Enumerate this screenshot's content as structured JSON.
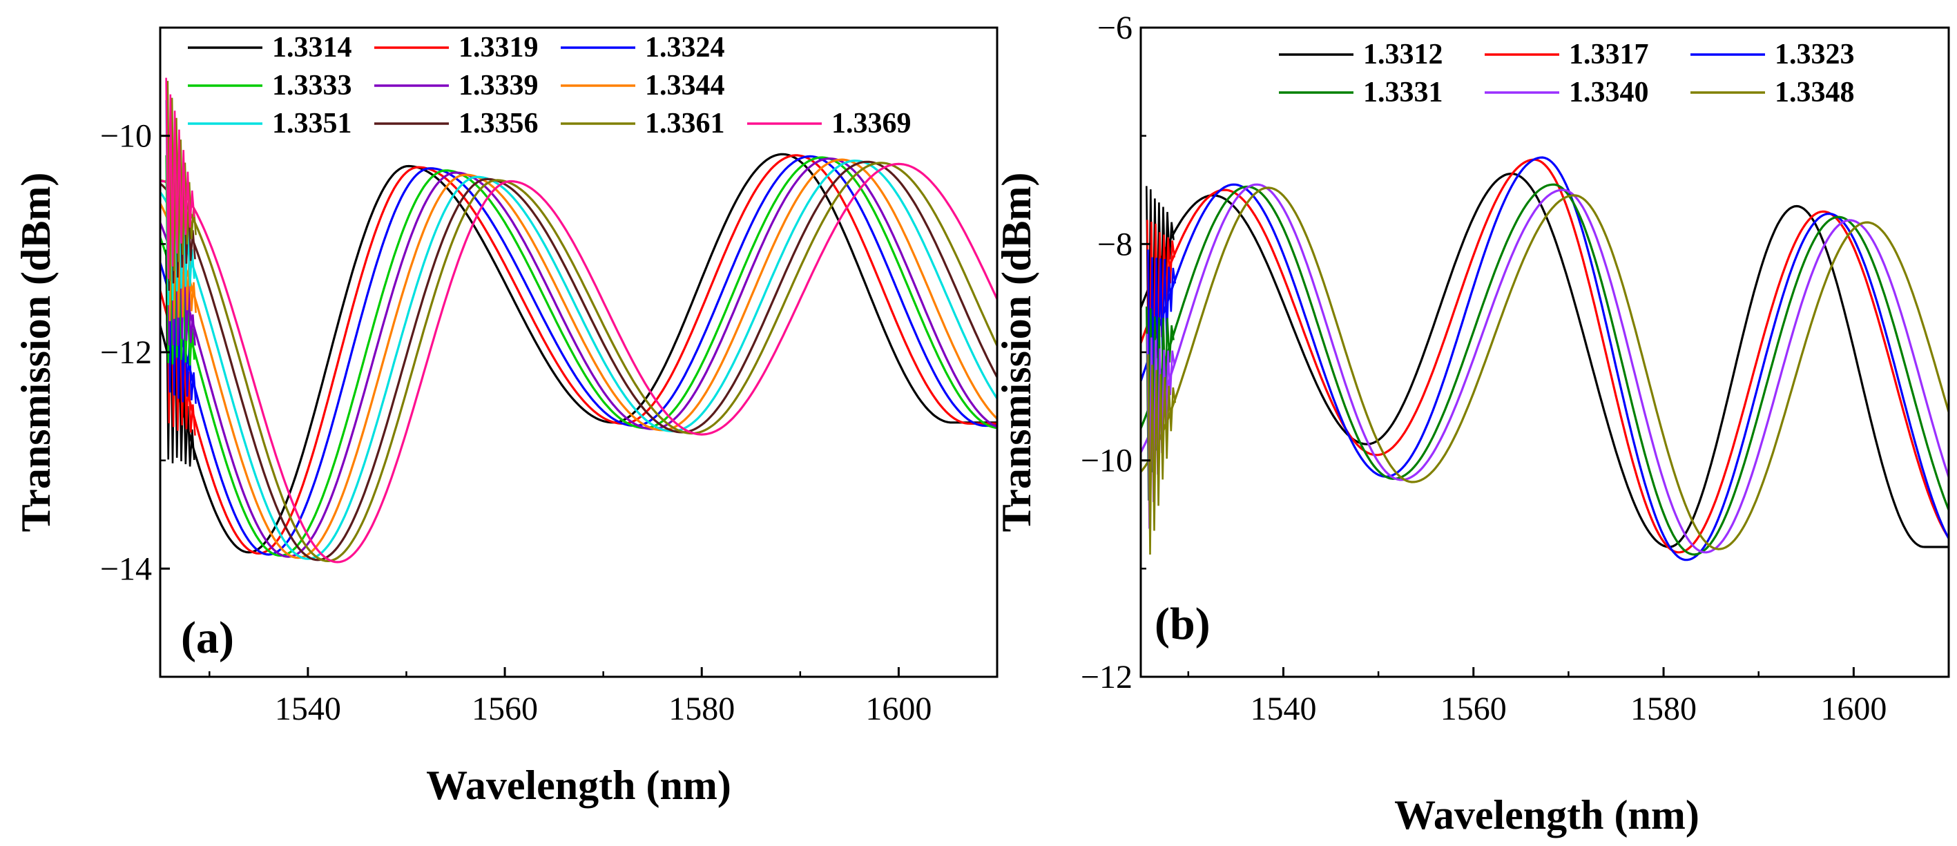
{
  "chart_data": [
    {
      "type": "line",
      "panel_label": "(a)",
      "xlabel": "Wavelength (nm)",
      "ylabel": "Transmission (dBm)",
      "xlim": [
        1525,
        1610
      ],
      "ylim": [
        -15,
        -9
      ],
      "xticks": [
        1540,
        1560,
        1580,
        1600
      ],
      "xtick_labels": [
        "1540",
        "1560",
        "1580",
        "1600"
      ],
      "yticks": [
        -14,
        -12,
        -10
      ],
      "ytick_labels": [
        "−14",
        "−12",
        "−10"
      ],
      "legend_position": "top",
      "legend_columns": 3,
      "series": [
        {
          "name": "1.3314",
          "color": "#000000",
          "peaks": [
            1550.2,
            1588.2
          ],
          "troughs": [
            1534.0,
            1571.0
          ],
          "peak_levels": [
            -10.28,
            -10.17
          ],
          "trough_levels": [
            -13.85,
            -12.65
          ]
        },
        {
          "name": "1.3319",
          "color": "#ff0000",
          "peaks": [
            1551.2,
            1589.6
          ],
          "troughs": [
            1535.0,
            1572.0
          ],
          "peak_levels": [
            -10.29,
            -10.18
          ],
          "trough_levels": [
            -13.86,
            -12.66
          ]
        },
        {
          "name": "1.3324",
          "color": "#0000ff",
          "peaks": [
            1552.4,
            1591.0
          ],
          "troughs": [
            1536.0,
            1573.2
          ],
          "peak_levels": [
            -10.3,
            -10.19
          ],
          "trough_levels": [
            -13.87,
            -12.68
          ]
        },
        {
          "name": "1.3333",
          "color": "#00cc00",
          "peaks": [
            1554.0,
            1592.2
          ],
          "troughs": [
            1537.2,
            1574.2
          ],
          "peak_levels": [
            -10.32,
            -10.2
          ],
          "trough_levels": [
            -13.88,
            -12.7
          ]
        },
        {
          "name": "1.3339",
          "color": "#8000c0",
          "peaks": [
            1555.0,
            1593.0
          ],
          "troughs": [
            1538.0,
            1575.0
          ],
          "peak_levels": [
            -10.34,
            -10.21
          ],
          "trough_levels": [
            -13.89,
            -12.71
          ]
        },
        {
          "name": "1.3344",
          "color": "#ff8000",
          "peaks": [
            1556.0,
            1594.2
          ],
          "troughs": [
            1539.0,
            1576.0
          ],
          "peak_levels": [
            -10.36,
            -10.22
          ],
          "trough_levels": [
            -13.9,
            -12.72
          ]
        },
        {
          "name": "1.3351",
          "color": "#00e0e0",
          "peaks": [
            1557.2,
            1595.6
          ],
          "troughs": [
            1540.0,
            1577.0
          ],
          "peak_levels": [
            -10.38,
            -10.23
          ],
          "trough_levels": [
            -13.91,
            -12.73
          ]
        },
        {
          "name": "1.3356",
          "color": "#5a1c1c",
          "peaks": [
            1558.2,
            1596.8
          ],
          "troughs": [
            1541.0,
            1578.0
          ],
          "peak_levels": [
            -10.4,
            -10.24
          ],
          "trough_levels": [
            -13.92,
            -12.74
          ]
        },
        {
          "name": "1.3361",
          "color": "#808000",
          "peaks": [
            1559.2,
            1598.2
          ],
          "troughs": [
            1542.0,
            1579.0
          ],
          "peak_levels": [
            -10.41,
            -10.25
          ],
          "trough_levels": [
            -13.93,
            -12.75
          ]
        },
        {
          "name": "1.3369",
          "color": "#ff1090",
          "peaks": [
            1560.6,
            1600.0
          ],
          "troughs": [
            1543.0,
            1580.0
          ],
          "peak_levels": [
            -10.42,
            -10.26
          ],
          "trough_levels": [
            -13.94,
            -12.76
          ]
        }
      ]
    },
    {
      "type": "line",
      "panel_label": "(b)",
      "xlabel": "Wavelength (nm)",
      "ylabel": "Transmission (dBm)",
      "xlim": [
        1525,
        1610
      ],
      "ylim": [
        -12,
        -6
      ],
      "xticks": [
        1540,
        1560,
        1580,
        1600
      ],
      "xtick_labels": [
        "1540",
        "1560",
        "1580",
        "1600"
      ],
      "yticks": [
        -12,
        -10,
        -8,
        -6
      ],
      "ytick_labels": [
        "−12",
        "−10",
        "−8",
        "−6"
      ],
      "legend_position": "top",
      "legend_columns": 3,
      "series": [
        {
          "name": "1.3312",
          "color": "#000000",
          "peaks": [
            1532.6,
            1564.0,
            1594.0
          ],
          "troughs": [
            1548.8,
            1580.6
          ],
          "peak_levels": [
            -7.55,
            -7.35,
            -7.65
          ],
          "trough_levels": [
            -9.85,
            -10.8
          ]
        },
        {
          "name": "1.3317",
          "color": "#ff0000",
          "peaks": [
            1533.8,
            1566.4,
            1596.8
          ],
          "troughs": [
            1549.8,
            1581.6
          ],
          "peak_levels": [
            -7.5,
            -7.22,
            -7.7
          ],
          "trough_levels": [
            -9.95,
            -10.85
          ]
        },
        {
          "name": "1.3323",
          "color": "#0000ff",
          "peaks": [
            1534.8,
            1567.2,
            1597.4
          ],
          "troughs": [
            1550.8,
            1582.4
          ],
          "peak_levels": [
            -7.45,
            -7.2,
            -7.72
          ],
          "trough_levels": [
            -10.15,
            -10.92
          ]
        },
        {
          "name": "1.3331",
          "color": "#008000",
          "peaks": [
            1536.2,
            1568.4,
            1598.4
          ],
          "troughs": [
            1551.6,
            1583.2
          ],
          "peak_levels": [
            -7.47,
            -7.45,
            -7.75
          ],
          "trough_levels": [
            -10.17,
            -10.87
          ]
        },
        {
          "name": "1.3340",
          "color": "#9b30ff",
          "peaks": [
            1537.2,
            1569.4,
            1599.6
          ],
          "troughs": [
            1552.4,
            1584.4
          ],
          "peak_levels": [
            -7.45,
            -7.5,
            -7.78
          ],
          "trough_levels": [
            -10.18,
            -10.85
          ]
        },
        {
          "name": "1.3348",
          "color": "#808000",
          "peaks": [
            1538.4,
            1570.6,
            1601.4
          ],
          "troughs": [
            1553.6,
            1585.8
          ],
          "peak_levels": [
            -7.48,
            -7.55,
            -7.8
          ],
          "trough_levels": [
            -10.2,
            -10.82
          ]
        }
      ]
    }
  ]
}
